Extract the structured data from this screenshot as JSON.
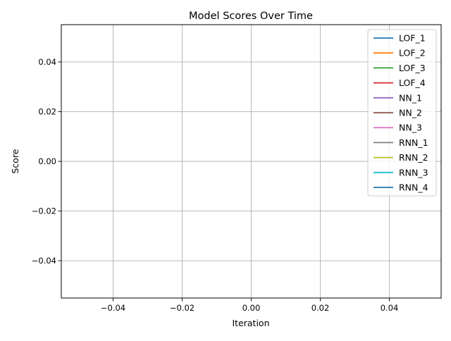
{
  "chart_data": {
    "type": "line",
    "title": "Model Scores Over Time",
    "xlabel": "Iteration",
    "ylabel": "Score",
    "xlim": [
      -0.055,
      0.055
    ],
    "ylim": [
      -0.055,
      0.055
    ],
    "x_ticks": [
      -0.04,
      -0.02,
      0.0,
      0.02,
      0.04
    ],
    "x_tick_labels": [
      "−0.04",
      "−0.02",
      "0.00",
      "0.02",
      "0.04"
    ],
    "y_ticks": [
      -0.04,
      -0.02,
      0.0,
      0.02,
      0.04
    ],
    "y_tick_labels": [
      "−0.04",
      "−0.02",
      "0.00",
      "0.02",
      "0.04"
    ],
    "grid": true,
    "legend_position": "top-right",
    "series": [
      {
        "name": "LOF_1",
        "color": "#1f77b4",
        "x": [],
        "values": []
      },
      {
        "name": "LOF_2",
        "color": "#ff7f0e",
        "x": [],
        "values": []
      },
      {
        "name": "LOF_3",
        "color": "#2ca02c",
        "x": [],
        "values": []
      },
      {
        "name": "LOF_4",
        "color": "#d62728",
        "x": [],
        "values": []
      },
      {
        "name": "NN_1",
        "color": "#9467bd",
        "x": [],
        "values": []
      },
      {
        "name": "NN_2",
        "color": "#8c564b",
        "x": [],
        "values": []
      },
      {
        "name": "NN_3",
        "color": "#e377c2",
        "x": [],
        "values": []
      },
      {
        "name": "RNN_1",
        "color": "#7f7f7f",
        "x": [],
        "values": []
      },
      {
        "name": "RNN_2",
        "color": "#bcbd22",
        "x": [],
        "values": []
      },
      {
        "name": "RNN_3",
        "color": "#17becf",
        "x": [],
        "values": []
      },
      {
        "name": "RNN_4",
        "color": "#1f77b4",
        "x": [],
        "values": []
      }
    ]
  }
}
